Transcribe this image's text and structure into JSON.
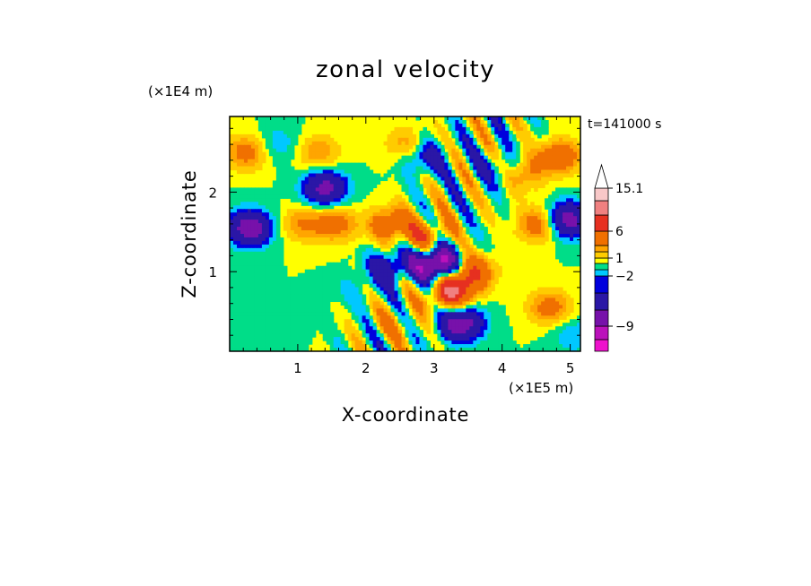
{
  "chart_data": {
    "type": "heatmap",
    "title": "zonal velocity",
    "xlabel": "X-coordinate",
    "ylabel": "Z-coordinate",
    "x_unit": "(×1E5 m)",
    "y_unit": "(×1E4 m)",
    "time_label": "t=141000 s",
    "xlim": [
      0,
      5.15
    ],
    "ylim": [
      0,
      2.95
    ],
    "x_ticks": [
      1,
      2,
      3,
      4,
      5
    ],
    "y_ticks": [
      1,
      2
    ],
    "colorbar": {
      "levels": [
        -15,
        -12,
        -9,
        -6,
        -3,
        -2,
        -1,
        0,
        1,
        2,
        3,
        6,
        9,
        12,
        15.1
      ],
      "colors": [
        "#ee11cc",
        "#bb11bb",
        "#7711aa",
        "#2a17a6",
        "#0000dd",
        "#00c8ff",
        "#00dd88",
        "#ffff00",
        "#ffcc00",
        "#ffa500",
        "#f07000",
        "#e63020",
        "#f08080",
        "#f8c8c8"
      ],
      "tick_labels": [
        "15.1",
        "6",
        "1",
        "−2",
        "−9"
      ]
    },
    "features": [
      {
        "x": 0.25,
        "z": 2.5,
        "u": 4
      },
      {
        "x": 1.3,
        "z": 2.5,
        "u": 3
      },
      {
        "x": 1.4,
        "z": 2.05,
        "u": -7
      },
      {
        "x": 0.3,
        "z": 1.55,
        "u": -8
      },
      {
        "x": 1.05,
        "z": 1.6,
        "u": 3
      },
      {
        "x": 1.55,
        "z": 1.6,
        "u": 4
      },
      {
        "x": 0.7,
        "z": 2.6,
        "u": -2
      },
      {
        "x": 2.35,
        "z": 1.6,
        "u": 5
      },
      {
        "x": 2.35,
        "z": 1.05,
        "u": -5
      },
      {
        "x": 3.05,
        "z": 1.1,
        "u": -12
      },
      {
        "x": 2.9,
        "z": 1.45,
        "u": 5
      },
      {
        "x": 3.25,
        "z": 0.75,
        "u": 9
      },
      {
        "x": 3.4,
        "z": 0.35,
        "u": -8
      },
      {
        "x": 3.55,
        "z": 1.0,
        "u": 6
      },
      {
        "x": 4.55,
        "z": 1.6,
        "u": 5
      },
      {
        "x": 4.95,
        "z": 1.65,
        "u": -8
      },
      {
        "x": 4.85,
        "z": 2.45,
        "u": 5
      },
      {
        "x": 4.3,
        "z": 2.25,
        "u": 4
      },
      {
        "x": 4.0,
        "z": 2.3,
        "u": -3
      },
      {
        "x": 2.85,
        "z": 2.45,
        "u": -4
      },
      {
        "x": 2.6,
        "z": 2.6,
        "u": 3
      },
      {
        "x": 4.7,
        "z": 0.55,
        "u": 4
      },
      {
        "x": 5.05,
        "z": 0.2,
        "u": -2
      },
      {
        "x": 1.8,
        "z": 0.75,
        "u": -1
      },
      {
        "x": 2.45,
        "z": 0.35,
        "u": 2
      }
    ]
  }
}
